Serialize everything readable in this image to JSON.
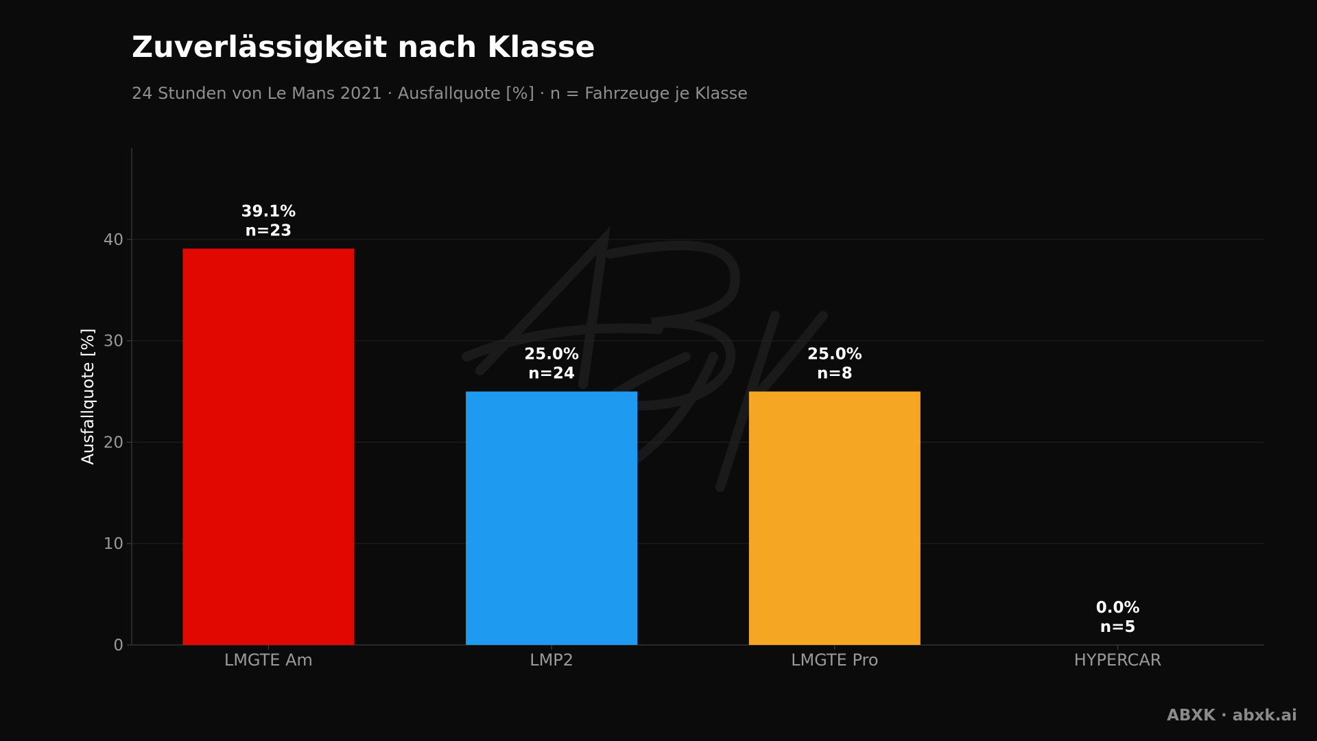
{
  "footer": {
    "brand": "ABXK · abxk.ai"
  },
  "watermark": {
    "text": "ABXK"
  },
  "chart_data": {
    "type": "bar",
    "title": "Zuverlässigkeit nach Klasse",
    "subtitle": "24 Stunden von Le Mans 2021 · Ausfallquote [%] · n = Fahrzeuge je Klasse",
    "xlabel": "",
    "ylabel": "Ausfallquote [%]",
    "ylim": [
      0,
      49
    ],
    "yticks": [
      0,
      10,
      20,
      30,
      40
    ],
    "grid": true,
    "categories": [
      "LMGTE Am",
      "LMP2",
      "LMGTE Pro",
      "HYPERCAR"
    ],
    "values": [
      39.1,
      25.0,
      25.0,
      0.0
    ],
    "n": [
      23,
      24,
      8,
      5
    ],
    "value_labels": [
      "39.1%",
      "25.0%",
      "25.0%",
      "0.0%"
    ],
    "n_labels": [
      "n=23",
      "n=24",
      "n=8",
      "n=5"
    ],
    "colors": [
      "#e00800",
      "#1e9bf0",
      "#f5a623",
      "#9b59b6"
    ]
  }
}
